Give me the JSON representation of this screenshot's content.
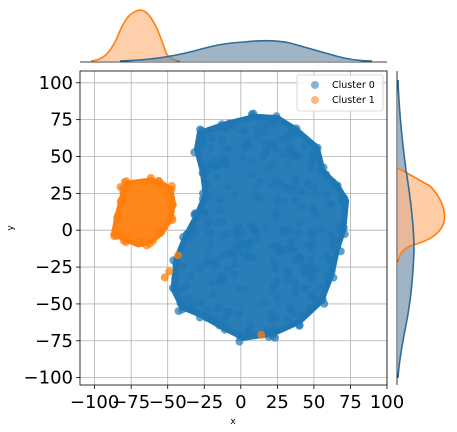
{
  "chart_data": {
    "type": "scatter",
    "xlabel": "x",
    "ylabel": "y",
    "xlim": [
      -110,
      100
    ],
    "ylim": [
      -105,
      108
    ],
    "xticks": [
      -100,
      -75,
      -50,
      -25,
      0,
      25,
      50,
      75,
      100
    ],
    "yticks": [
      -100,
      -75,
      -50,
      -25,
      0,
      25,
      50,
      75,
      100
    ],
    "xtick_labels": [
      "−100",
      "−75",
      "−50",
      "−25",
      "0",
      "25",
      "50",
      "75",
      "100"
    ],
    "ytick_labels": [
      "−100",
      "−75",
      "−50",
      "−25",
      "0",
      "25",
      "50",
      "75",
      "100"
    ],
    "grid": true,
    "legend": {
      "position": "top-right",
      "entries": [
        "Cluster 0",
        "Cluster 1"
      ]
    },
    "marginals": {
      "top": "kde-histogram of x per cluster",
      "right": "kde-histogram of y per cluster"
    },
    "series": [
      {
        "name": "Cluster 0",
        "color": "#1f77b4",
        "regions": [
          {
            "shape": "blob",
            "cx": 18,
            "cy": -2,
            "note": "main dense cloud spanning x -45..70, y -73..76"
          }
        ],
        "extent": {
          "x": [
            -47,
            73
          ],
          "y": [
            -73,
            76
          ]
        }
      },
      {
        "name": "Cluster 1",
        "color": "#ff7f0e",
        "regions": [
          {
            "shape": "blob",
            "cx": -68,
            "cy": 13,
            "note": "dense cloud spanning x -87..-45, y -10..33"
          }
        ],
        "outliers": [
          [
            -43,
            -17
          ],
          [
            -52,
            -32
          ],
          [
            -49,
            -28
          ],
          [
            14,
            -71
          ]
        ],
        "extent": {
          "x": [
            -87,
            -45
          ],
          "y": [
            -10,
            34
          ]
        }
      }
    ]
  }
}
